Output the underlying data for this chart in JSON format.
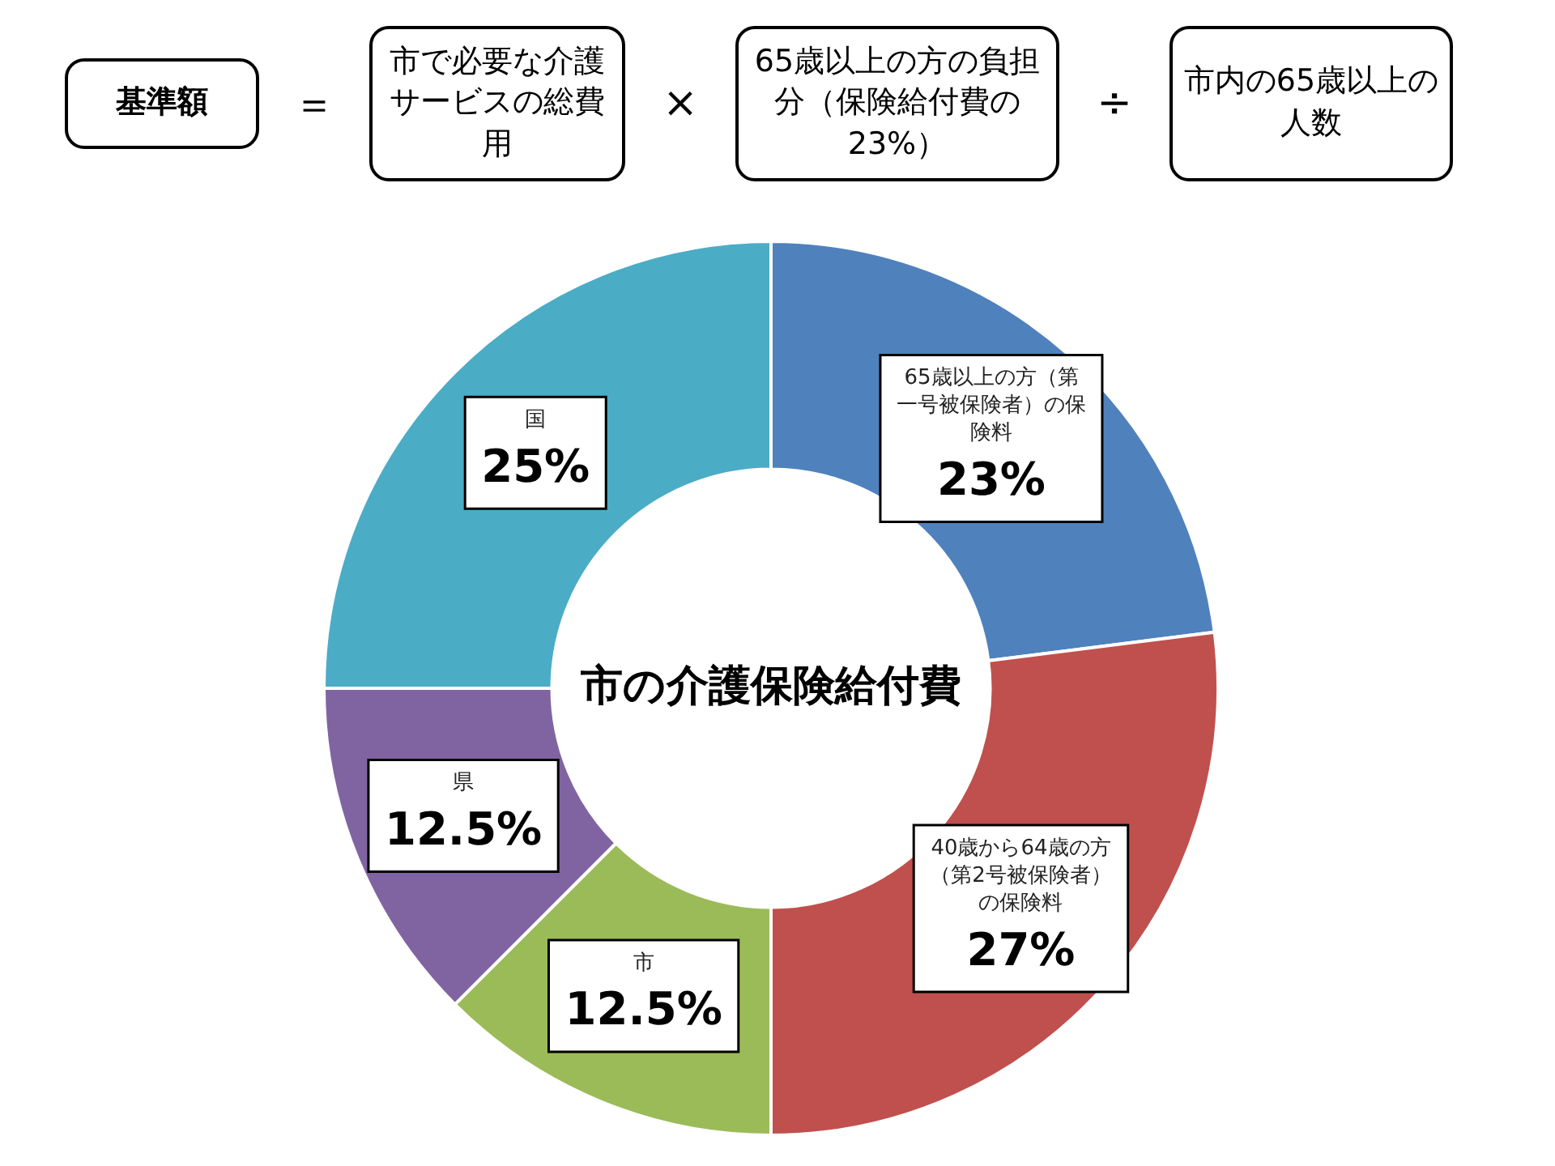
{
  "chart_data": {
    "type": "donut",
    "title": "市の介護保険給付費",
    "categories": [
      "65歳以上の方（第一号被保険者）の保険料",
      "40歳から64歳の方（第2号被保険者）の保険料",
      "市",
      "県",
      "国"
    ],
    "values": [
      23,
      27,
      12.5,
      12.5,
      25
    ],
    "colors": [
      "#4f81bd",
      "#c0504d",
      "#9bbb59",
      "#8064a2",
      "#4bacc6"
    ],
    "value_labels": [
      "23%",
      "27%",
      "12.5%",
      "12.5%",
      "25%"
    ],
    "legend": false,
    "annotations": [
      "基準額",
      "＝",
      "市で必要な介護サービスの総費用",
      "×",
      "65歳以上の方の負担分（保険給付費の23%）",
      "÷",
      "市内の65歳以上の人数"
    ]
  }
}
